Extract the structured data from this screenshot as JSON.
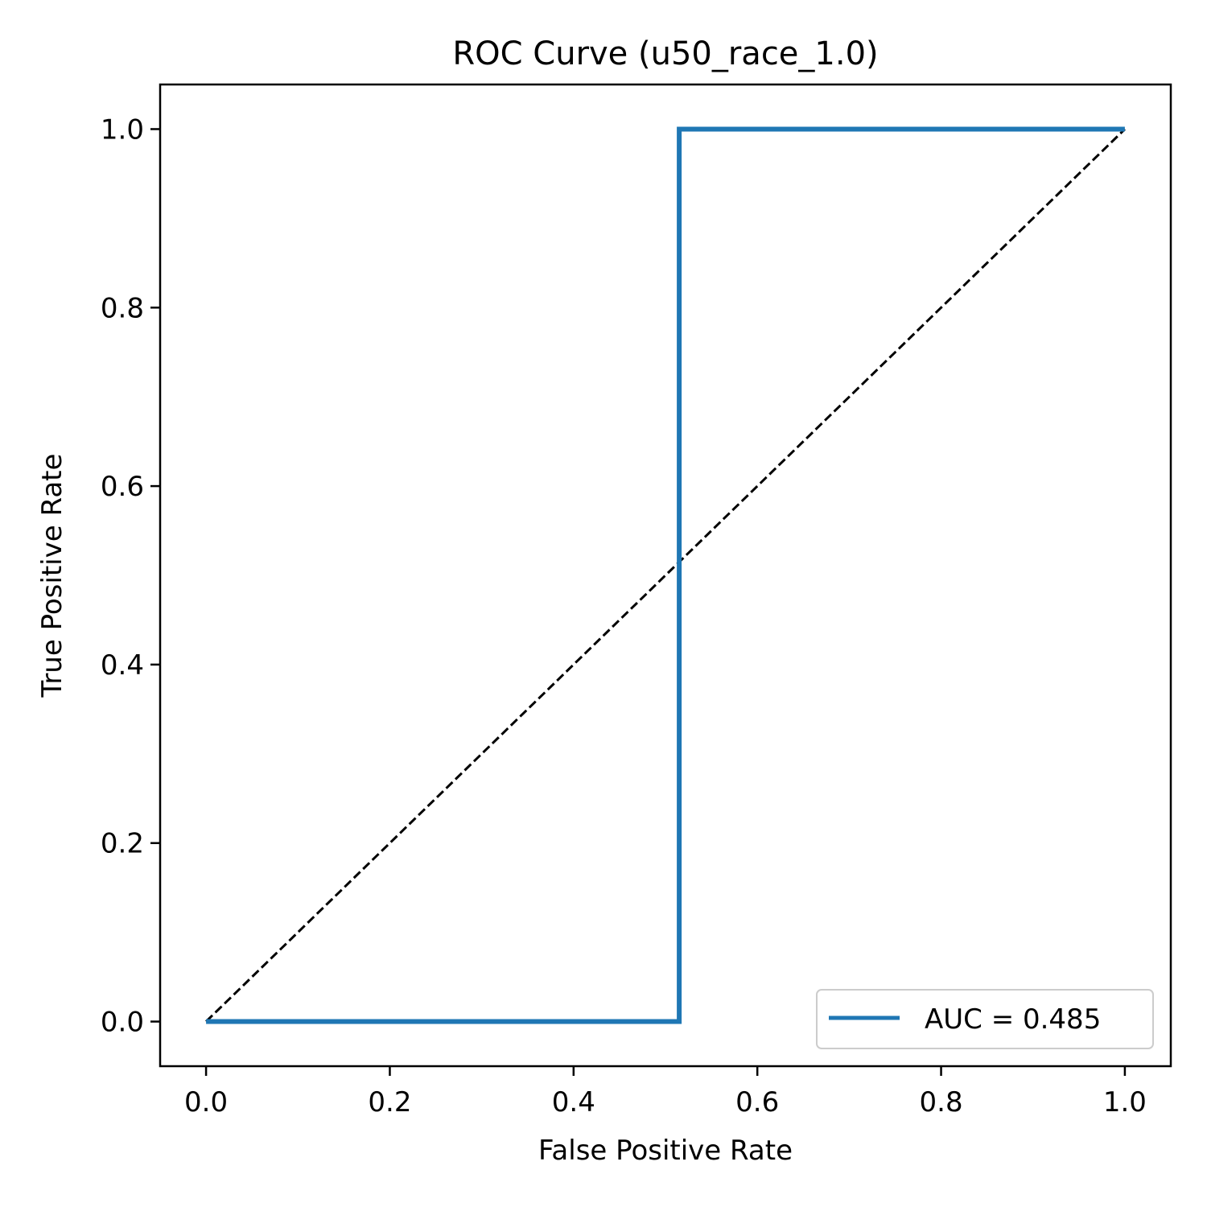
{
  "chart_data": {
    "type": "line",
    "title": "ROC Curve (u50_race_1.0)",
    "xlabel": "False Positive Rate",
    "ylabel": "True Positive Rate",
    "xlim": [
      -0.05,
      1.05
    ],
    "ylim": [
      -0.05,
      1.05
    ],
    "xticks": [
      0.0,
      0.2,
      0.4,
      0.6,
      0.8,
      1.0
    ],
    "yticks": [
      0.0,
      0.2,
      0.4,
      0.6,
      0.8,
      1.0
    ],
    "xtick_labels": [
      "0.0",
      "0.2",
      "0.4",
      "0.6",
      "0.8",
      "1.0"
    ],
    "ytick_labels": [
      "0.0",
      "0.2",
      "0.4",
      "0.6",
      "0.8",
      "1.0"
    ],
    "grid": false,
    "legend_position": "lower-right",
    "series": [
      {
        "name": "AUC = 0.485",
        "color": "#1f77b4",
        "style": "solid",
        "x": [
          0.0,
          0.515,
          0.515,
          1.0
        ],
        "y": [
          0.0,
          0.0,
          1.0,
          1.0
        ]
      },
      {
        "color": "#000000",
        "style": "dashed",
        "x": [
          0.0,
          1.0
        ],
        "y": [
          0.0,
          1.0
        ]
      }
    ]
  }
}
